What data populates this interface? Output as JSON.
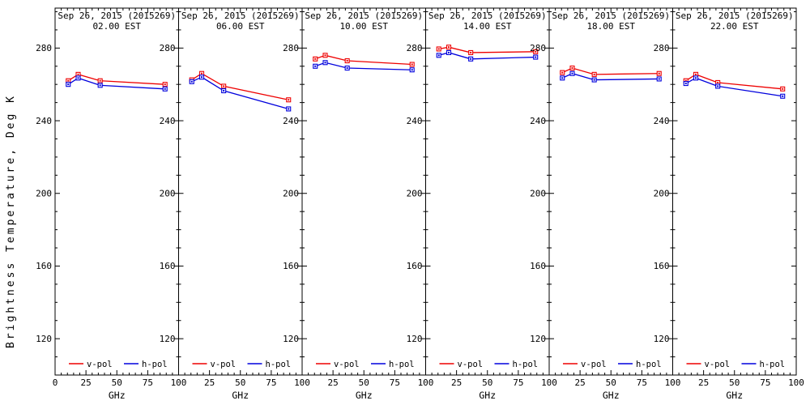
{
  "figure": {
    "ylabel": "Brightness Temperature, Deg K",
    "background_color": "#ffffff",
    "axis_color": "#000000",
    "vpol_color": "#ee0000",
    "hpol_color": "#0000dd"
  },
  "chart_data": [
    {
      "type": "line",
      "title": "Sep 26, 2015 (2015269)",
      "subtitle": "02.00 EST",
      "xlabel": "GHz",
      "x": [
        10.65,
        18.7,
        36.5,
        89
      ],
      "xlim": [
        0,
        100
      ],
      "ylim": [
        100,
        302
      ],
      "xticks": [
        0,
        25,
        50,
        75,
        100
      ],
      "yticks": [
        120,
        160,
        200,
        240,
        280
      ],
      "legend_position": "bottom-inside",
      "series": [
        {
          "name": "v-pol",
          "color": "#ee0000",
          "values": [
            262.0,
            265.5,
            262.0,
            260.0
          ]
        },
        {
          "name": "h-pol",
          "color": "#0000dd",
          "values": [
            260.0,
            263.5,
            259.5,
            257.5
          ]
        }
      ]
    },
    {
      "type": "line",
      "title": "Sep 26, 2015 (2015269)",
      "subtitle": "06.00 EST",
      "xlabel": "GHz",
      "x": [
        10.65,
        18.7,
        36.5,
        89
      ],
      "xlim": [
        0,
        100
      ],
      "ylim": [
        100,
        302
      ],
      "xticks": [
        0,
        25,
        50,
        75,
        100
      ],
      "yticks": [
        120,
        160,
        200,
        240,
        280
      ],
      "legend_position": "bottom-inside",
      "series": [
        {
          "name": "v-pol",
          "color": "#ee0000",
          "values": [
            262.5,
            266.0,
            259.0,
            251.5
          ]
        },
        {
          "name": "h-pol",
          "color": "#0000dd",
          "values": [
            261.5,
            264.0,
            256.5,
            246.5
          ]
        }
      ]
    },
    {
      "type": "line",
      "title": "Sep 26, 2015 (2015269)",
      "subtitle": "10.00 EST",
      "xlabel": "GHz",
      "x": [
        10.65,
        18.7,
        36.5,
        89
      ],
      "xlim": [
        0,
        100
      ],
      "ylim": [
        100,
        302
      ],
      "xticks": [
        0,
        25,
        50,
        75,
        100
      ],
      "yticks": [
        120,
        160,
        200,
        240,
        280
      ],
      "legend_position": "bottom-inside",
      "series": [
        {
          "name": "v-pol",
          "color": "#ee0000",
          "values": [
            274.0,
            276.0,
            273.0,
            271.0
          ]
        },
        {
          "name": "h-pol",
          "color": "#0000dd",
          "values": [
            270.0,
            272.0,
            269.0,
            268.0
          ]
        }
      ]
    },
    {
      "type": "line",
      "title": "Sep 26, 2015 (2015269)",
      "subtitle": "14.00 EST",
      "xlabel": "GHz",
      "x": [
        10.65,
        18.7,
        36.5,
        89
      ],
      "xlim": [
        0,
        100
      ],
      "ylim": [
        100,
        302
      ],
      "xticks": [
        0,
        25,
        50,
        75,
        100
      ],
      "yticks": [
        120,
        160,
        200,
        240,
        280
      ],
      "legend_position": "bottom-inside",
      "series": [
        {
          "name": "v-pol",
          "color": "#ee0000",
          "values": [
            279.5,
            280.5,
            277.5,
            278.0
          ]
        },
        {
          "name": "h-pol",
          "color": "#0000dd",
          "values": [
            276.0,
            277.5,
            274.0,
            275.0
          ]
        }
      ]
    },
    {
      "type": "line",
      "title": "Sep 26, 2015 (2015269)",
      "subtitle": "18.00 EST",
      "xlabel": "GHz",
      "x": [
        10.65,
        18.7,
        36.5,
        89
      ],
      "xlim": [
        0,
        100
      ],
      "ylim": [
        100,
        302
      ],
      "xticks": [
        0,
        25,
        50,
        75,
        100
      ],
      "yticks": [
        120,
        160,
        200,
        240,
        280
      ],
      "legend_position": "bottom-inside",
      "series": [
        {
          "name": "v-pol",
          "color": "#ee0000",
          "values": [
            266.5,
            269.0,
            265.5,
            266.0
          ]
        },
        {
          "name": "h-pol",
          "color": "#0000dd",
          "values": [
            263.5,
            266.0,
            262.5,
            263.0
          ]
        }
      ]
    },
    {
      "type": "line",
      "title": "Sep 26, 2015 (2015269)",
      "subtitle": "22.00 EST",
      "xlabel": "GHz",
      "x": [
        10.65,
        18.7,
        36.5,
        89
      ],
      "xlim": [
        0,
        100
      ],
      "ylim": [
        100,
        302
      ],
      "xticks": [
        0,
        25,
        50,
        75,
        100
      ],
      "yticks": [
        120,
        160,
        200,
        240,
        280
      ],
      "legend_position": "bottom-inside",
      "series": [
        {
          "name": "v-pol",
          "color": "#ee0000",
          "values": [
            262.0,
            265.5,
            261.0,
            257.5
          ]
        },
        {
          "name": "h-pol",
          "color": "#0000dd",
          "values": [
            260.5,
            263.5,
            259.0,
            253.5
          ]
        }
      ]
    }
  ]
}
